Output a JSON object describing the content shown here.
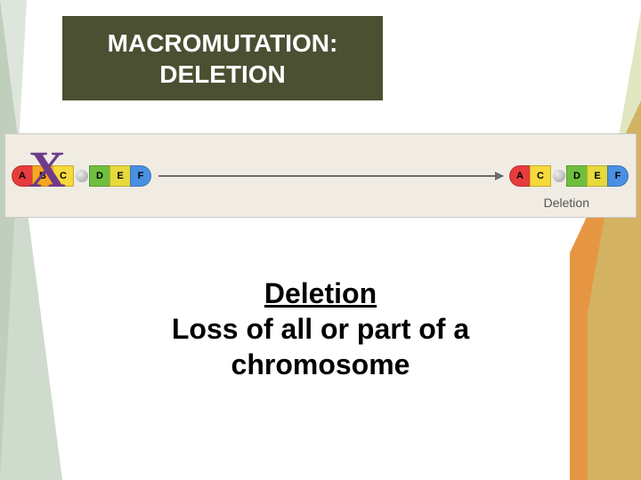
{
  "slide": {
    "title_line1": "MACROMUTATION:",
    "title_line2": "DELETION",
    "title_box_bg": "#4c5032",
    "title_font_color": "#ffffff",
    "title_font_size_pt": 28,
    "term": "Deletion",
    "definition": "Loss of all or part of a chromosome",
    "body_font_size_pt": 32
  },
  "diagram": {
    "type": "infographic",
    "strip_bg": "#f1ece3",
    "before": {
      "segments": [
        {
          "label": "A",
          "color": "#e73c3c"
        },
        {
          "label": "B",
          "color": "#f5a623"
        },
        {
          "label": "C",
          "color": "#f6d93b"
        }
      ],
      "segments_right": [
        {
          "label": "D",
          "color": "#6fbf3f"
        },
        {
          "label": "E",
          "color": "#e6d93b"
        },
        {
          "label": "F",
          "color": "#4a90e2"
        }
      ],
      "deleted": {
        "label": "X",
        "color": "#6e3b8a",
        "over_index": 1
      }
    },
    "after": {
      "segments": [
        {
          "label": "A",
          "color": "#e73c3c"
        },
        {
          "label": "C",
          "color": "#f6d93b"
        }
      ],
      "segments_right": [
        {
          "label": "D",
          "color": "#6fbf3f"
        },
        {
          "label": "E",
          "color": "#e6d93b"
        },
        {
          "label": "F",
          "color": "#4a90e2"
        }
      ]
    },
    "label": "Deletion",
    "label_color": "#555555",
    "arrow_color": "#6b6b6b"
  },
  "decor": {
    "left_triangle": "#a8bda2",
    "left_stripe": "#c8d4c4",
    "right_orange": "#e38a2e",
    "right_green": "#c0cf80"
  }
}
